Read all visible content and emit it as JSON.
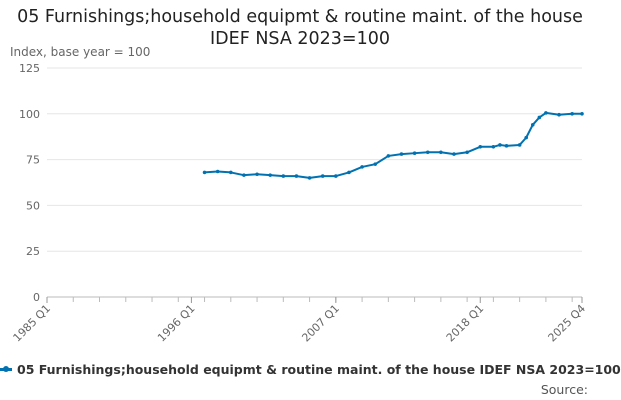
{
  "chart_data": {
    "type": "line",
    "title": "05 Furnishings;household equipmt & routine maint. of the house IDEF NSA 2023=100",
    "ylabel": "Index, base year = 100",
    "xlabel": "",
    "ylim": [
      0,
      125
    ],
    "yticks": [
      0,
      25,
      50,
      75,
      100,
      125
    ],
    "x_tick_labels": [
      "1985 Q1",
      "1996 Q1",
      "2007 Q1",
      "2018 Q1",
      "2025 Q4"
    ],
    "x_range": [
      "1985 Q1",
      "2025 Q4"
    ],
    "grid": true,
    "legend_position": "bottom-left",
    "color": "#0072B2",
    "series": [
      {
        "name": "05 Furnishings;household equipmt & routine maint. of the house IDEF NSA 2023=100",
        "x": [
          "1997 Q1",
          "1998 Q1",
          "1999 Q1",
          "2000 Q1",
          "2001 Q1",
          "2002 Q1",
          "2003 Q1",
          "2004 Q1",
          "2005 Q1",
          "2006 Q1",
          "2007 Q1",
          "2008 Q1",
          "2009 Q1",
          "2010 Q1",
          "2011 Q1",
          "2012 Q1",
          "2013 Q1",
          "2014 Q1",
          "2015 Q1",
          "2016 Q1",
          "2017 Q1",
          "2018 Q1",
          "2019 Q1",
          "2019 Q3",
          "2020 Q1",
          "2021 Q1",
          "2021 Q3",
          "2022 Q1",
          "2022 Q3",
          "2023 Q1",
          "2024 Q1",
          "2025 Q1",
          "2025 Q4"
        ],
        "values": [
          68,
          68.5,
          68,
          66.5,
          67,
          66.5,
          66,
          66,
          65,
          66,
          66,
          68,
          71,
          72.5,
          77,
          78,
          78.5,
          79,
          79,
          78,
          79,
          82,
          82,
          83,
          82.5,
          83,
          87,
          94,
          98,
          100.5,
          99.5,
          100,
          100
        ]
      }
    ]
  },
  "legend": {
    "label": "05 Furnishings;household equipmt & routine maint. of the house IDEF NSA 2023=100"
  },
  "source": {
    "label": "Source:"
  }
}
